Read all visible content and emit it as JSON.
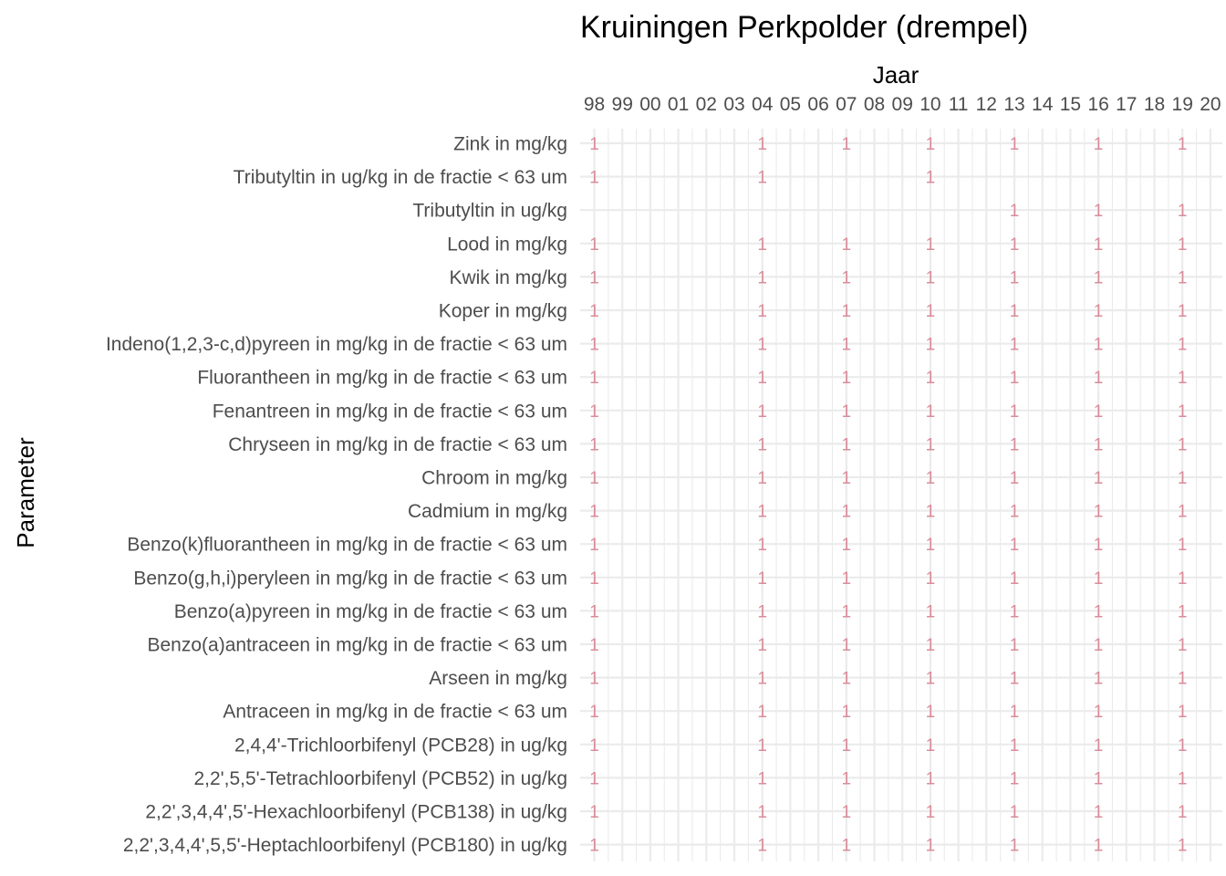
{
  "chart_data": {
    "type": "table",
    "title": "Kruiningen Perkpolder (drempel)",
    "xlabel": "Jaar",
    "ylabel": "Parameter",
    "x": [
      "98",
      "99",
      "00",
      "01",
      "02",
      "03",
      "04",
      "05",
      "06",
      "07",
      "08",
      "09",
      "10",
      "11",
      "12",
      "13",
      "14",
      "15",
      "16",
      "17",
      "18",
      "19",
      "20"
    ],
    "label_color": "#d98c99",
    "rows": [
      {
        "name": "Zink in mg/kg",
        "years": [
          "98",
          "04",
          "07",
          "10",
          "13",
          "16",
          "19"
        ],
        "value": "1"
      },
      {
        "name": "Tributyltin in ug/kg in de fractie < 63 um",
        "years": [
          "98",
          "04",
          "10"
        ],
        "value": "1"
      },
      {
        "name": "Tributyltin in ug/kg",
        "years": [
          "13",
          "16",
          "19"
        ],
        "value": "1"
      },
      {
        "name": "Lood in mg/kg",
        "years": [
          "98",
          "04",
          "07",
          "10",
          "13",
          "16",
          "19"
        ],
        "value": "1"
      },
      {
        "name": "Kwik in mg/kg",
        "years": [
          "98",
          "04",
          "07",
          "10",
          "13",
          "16",
          "19"
        ],
        "value": "1"
      },
      {
        "name": "Koper in mg/kg",
        "years": [
          "98",
          "04",
          "07",
          "10",
          "13",
          "16",
          "19"
        ],
        "value": "1"
      },
      {
        "name": "Indeno(1,2,3-c,d)pyreen in mg/kg in de fractie < 63 um",
        "years": [
          "98",
          "04",
          "07",
          "10",
          "13",
          "16",
          "19"
        ],
        "value": "1"
      },
      {
        "name": "Fluorantheen in mg/kg in de fractie < 63 um",
        "years": [
          "98",
          "04",
          "07",
          "10",
          "13",
          "16",
          "19"
        ],
        "value": "1"
      },
      {
        "name": "Fenantreen in mg/kg in de fractie < 63 um",
        "years": [
          "98",
          "04",
          "07",
          "10",
          "13",
          "16",
          "19"
        ],
        "value": "1"
      },
      {
        "name": "Chryseen in mg/kg in de fractie < 63 um",
        "years": [
          "98",
          "04",
          "07",
          "10",
          "13",
          "16",
          "19"
        ],
        "value": "1"
      },
      {
        "name": "Chroom in mg/kg",
        "years": [
          "98",
          "04",
          "07",
          "10",
          "13",
          "16",
          "19"
        ],
        "value": "1"
      },
      {
        "name": "Cadmium in mg/kg",
        "years": [
          "98",
          "04",
          "07",
          "10",
          "13",
          "16",
          "19"
        ],
        "value": "1"
      },
      {
        "name": "Benzo(k)fluorantheen in mg/kg in de fractie < 63 um",
        "years": [
          "98",
          "04",
          "07",
          "10",
          "13",
          "16",
          "19"
        ],
        "value": "1"
      },
      {
        "name": "Benzo(g,h,i)peryleen in mg/kg in de fractie < 63 um",
        "years": [
          "98",
          "04",
          "07",
          "10",
          "13",
          "16",
          "19"
        ],
        "value": "1"
      },
      {
        "name": "Benzo(a)pyreen in mg/kg in de fractie < 63 um",
        "years": [
          "98",
          "04",
          "07",
          "10",
          "13",
          "16",
          "19"
        ],
        "value": "1"
      },
      {
        "name": "Benzo(a)antraceen in mg/kg in de fractie < 63 um",
        "years": [
          "98",
          "04",
          "07",
          "10",
          "13",
          "16",
          "19"
        ],
        "value": "1"
      },
      {
        "name": "Arseen in mg/kg",
        "years": [
          "98",
          "04",
          "07",
          "10",
          "13",
          "16",
          "19"
        ],
        "value": "1"
      },
      {
        "name": "Antraceen in mg/kg in de fractie < 63 um",
        "years": [
          "98",
          "04",
          "07",
          "10",
          "13",
          "16",
          "19"
        ],
        "value": "1"
      },
      {
        "name": "2,4,4'-Trichloorbifenyl (PCB28) in ug/kg",
        "years": [
          "98",
          "04",
          "07",
          "10",
          "13",
          "16",
          "19"
        ],
        "value": "1"
      },
      {
        "name": "2,2',5,5'-Tetrachloorbifenyl (PCB52) in ug/kg",
        "years": [
          "98",
          "04",
          "07",
          "10",
          "13",
          "16",
          "19"
        ],
        "value": "1"
      },
      {
        "name": "2,2',3,4,4',5'-Hexachloorbifenyl (PCB138) in ug/kg",
        "years": [
          "98",
          "04",
          "07",
          "10",
          "13",
          "16",
          "19"
        ],
        "value": "1"
      },
      {
        "name": "2,2',3,4,4',5,5'-Heptachloorbifenyl (PCB180) in ug/kg",
        "years": [
          "98",
          "04",
          "07",
          "10",
          "13",
          "16",
          "19"
        ],
        "value": "1"
      }
    ],
    "grid": true
  }
}
